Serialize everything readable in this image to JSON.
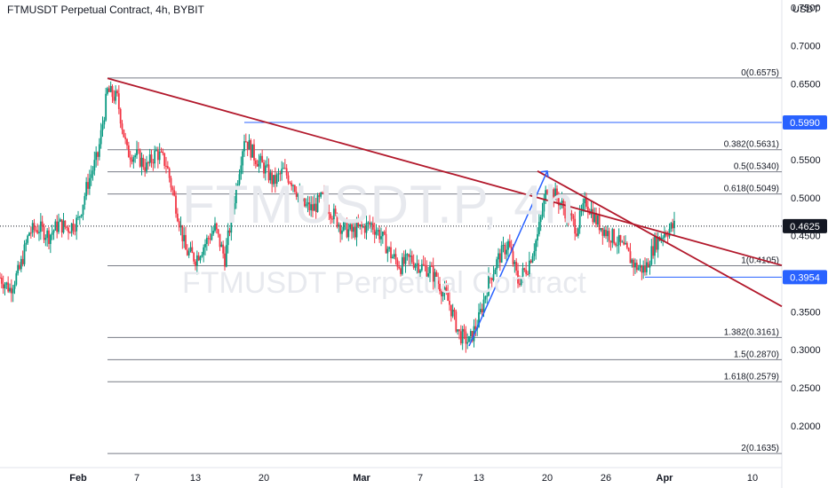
{
  "header": {
    "title": "FTMUSDT Perpetual Contract, 4h, BYBIT"
  },
  "watermark": {
    "symbol": "FTMUSDT.P, 4h",
    "name": "FTMUSDT Perpetual Contract"
  },
  "chart_data": {
    "type": "candlestick",
    "symbol": "FTMUSDT Perpetual Contract",
    "interval": "4h",
    "exchange": "BYBIT",
    "currency": "USDT",
    "y_axis": {
      "label": "USDT",
      "ticks": [
        "0.7500",
        "0.7000",
        "0.6500",
        "0.6000",
        "0.5500",
        "0.5000",
        "0.4500",
        "0.4000",
        "0.3500",
        "0.3000",
        "0.2500",
        "0.2000"
      ],
      "range": [
        0.145,
        0.76
      ]
    },
    "x_axis": {
      "ticks": [
        {
          "label": "Feb",
          "date": "2024-02-01",
          "bold": true
        },
        {
          "label": "7",
          "date": "2024-02-07",
          "bold": false
        },
        {
          "label": "13",
          "date": "2024-02-13",
          "bold": false
        },
        {
          "label": "20",
          "date": "2024-02-20",
          "bold": false
        },
        {
          "label": "Mar",
          "date": "2024-03-01",
          "bold": true
        },
        {
          "label": "7",
          "date": "2024-03-07",
          "bold": false
        },
        {
          "label": "13",
          "date": "2024-03-13",
          "bold": false
        },
        {
          "label": "20",
          "date": "2024-03-20",
          "bold": false
        },
        {
          "label": "26",
          "date": "2024-03-26",
          "bold": false
        },
        {
          "label": "Apr",
          "date": "2024-04-01",
          "bold": true
        },
        {
          "label": "10",
          "date": "2024-04-10",
          "bold": false
        }
      ],
      "range": [
        "2024-01-24",
        "2024-04-13"
      ]
    },
    "price_path": [
      [
        "2024-01-24",
        0.395
      ],
      [
        "2024-01-25",
        0.38
      ],
      [
        "2024-01-26",
        0.405
      ],
      [
        "2024-01-27",
        0.455
      ],
      [
        "2024-01-28",
        0.46
      ],
      [
        "2024-01-29",
        0.45
      ],
      [
        "2024-01-30",
        0.465
      ],
      [
        "2024-01-31",
        0.46
      ],
      [
        "2024-02-01",
        0.47
      ],
      [
        "2024-02-02",
        0.52
      ],
      [
        "2024-02-03",
        0.555
      ],
      [
        "2024-02-04",
        0.64
      ],
      [
        "2024-02-05",
        0.63
      ],
      [
        "2024-02-06",
        0.56
      ],
      [
        "2024-02-07",
        0.555
      ],
      [
        "2024-02-08",
        0.54
      ],
      [
        "2024-02-09",
        0.56
      ],
      [
        "2024-02-10",
        0.545
      ],
      [
        "2024-02-11",
        0.49
      ],
      [
        "2024-02-12",
        0.43
      ],
      [
        "2024-02-13",
        0.42
      ],
      [
        "2024-02-14",
        0.44
      ],
      [
        "2024-02-15",
        0.46
      ],
      [
        "2024-02-16",
        0.42
      ],
      [
        "2024-02-17",
        0.5
      ],
      [
        "2024-02-18",
        0.58
      ],
      [
        "2024-02-19",
        0.555
      ],
      [
        "2024-02-20",
        0.54
      ],
      [
        "2024-02-21",
        0.52
      ],
      [
        "2024-02-22",
        0.535
      ],
      [
        "2024-02-23",
        0.52
      ],
      [
        "2024-02-24",
        0.49
      ],
      [
        "2024-02-25",
        0.485
      ],
      [
        "2024-02-26",
        0.5
      ],
      [
        "2024-02-27",
        0.48
      ],
      [
        "2024-02-28",
        0.46
      ],
      [
        "2024-02-29",
        0.455
      ],
      [
        "2024-03-01",
        0.46
      ],
      [
        "2024-03-02",
        0.465
      ],
      [
        "2024-03-03",
        0.45
      ],
      [
        "2024-03-04",
        0.425
      ],
      [
        "2024-03-05",
        0.41
      ],
      [
        "2024-03-06",
        0.42
      ],
      [
        "2024-03-07",
        0.41
      ],
      [
        "2024-03-08",
        0.405
      ],
      [
        "2024-03-09",
        0.385
      ],
      [
        "2024-03-10",
        0.36
      ],
      [
        "2024-03-11",
        0.32
      ],
      [
        "2024-03-12",
        0.31
      ],
      [
        "2024-03-13",
        0.34
      ],
      [
        "2024-03-14",
        0.39
      ],
      [
        "2024-03-15",
        0.42
      ],
      [
        "2024-03-16",
        0.44
      ],
      [
        "2024-03-17",
        0.39
      ],
      [
        "2024-03-18",
        0.41
      ],
      [
        "2024-03-19",
        0.45
      ],
      [
        "2024-03-20",
        0.515
      ],
      [
        "2024-03-21",
        0.5
      ],
      [
        "2024-03-22",
        0.48
      ],
      [
        "2024-03-23",
        0.46
      ],
      [
        "2024-03-24",
        0.495
      ],
      [
        "2024-03-25",
        0.47
      ],
      [
        "2024-03-26",
        0.455
      ],
      [
        "2024-03-27",
        0.445
      ],
      [
        "2024-03-28",
        0.43
      ],
      [
        "2024-03-29",
        0.41
      ],
      [
        "2024-03-30",
        0.405
      ],
      [
        "2024-03-31",
        0.44
      ],
      [
        "2024-04-01",
        0.455
      ],
      [
        "2024-04-02",
        0.4625
      ]
    ],
    "trendlines": [
      {
        "name": "descending-resistance",
        "color": "#b2182b",
        "from": [
          "2024-02-04",
          0.657
        ],
        "to": [
          "2024-04-13",
          0.411
        ]
      },
      {
        "name": "lower-channel",
        "color": "#b2182b",
        "from": [
          "2024-03-19",
          0.535
        ],
        "to": [
          "2024-04-13",
          0.357
        ]
      },
      {
        "name": "rally-arrow",
        "color": "#2962ff",
        "from": [
          "2024-03-12",
          0.305
        ],
        "to": [
          "2024-03-20",
          0.535
        ]
      }
    ],
    "horizontal_levels": [
      {
        "name": "resistance",
        "value": 0.599,
        "from": "2024-02-18",
        "color": "#2962ff"
      },
      {
        "name": "support",
        "value": 0.3954,
        "from": "2024-03-30",
        "color": "#2962ff"
      }
    ],
    "fibonacci": {
      "color": "#787b86",
      "from": "2024-02-04",
      "levels": [
        {
          "label": "0(0.6575)",
          "value": 0.6575
        },
        {
          "label": "0.382(0.5631)",
          "value": 0.5631
        },
        {
          "label": "0.5(0.5340)",
          "value": 0.534
        },
        {
          "label": "0.618(0.5049)",
          "value": 0.5049
        },
        {
          "label": "1(0.4105)",
          "value": 0.4105
        },
        {
          "label": "1.382(0.3161)",
          "value": 0.3161
        },
        {
          "label": "1.5(0.2870)",
          "value": 0.287
        },
        {
          "label": "1.618(0.2579)",
          "value": 0.2579
        },
        {
          "label": "2(0.1635)",
          "value": 0.1635
        }
      ]
    },
    "price_badges": [
      {
        "label": "0.5990",
        "value": 0.599,
        "color": "#2962ff"
      },
      {
        "label": "0.4625",
        "value": 0.4625,
        "color": "#131722"
      },
      {
        "label": "0.3954",
        "value": 0.3954,
        "color": "#2962ff"
      }
    ],
    "last_price": 0.4625,
    "colors": {
      "up": "#089981",
      "down": "#f23645"
    }
  }
}
